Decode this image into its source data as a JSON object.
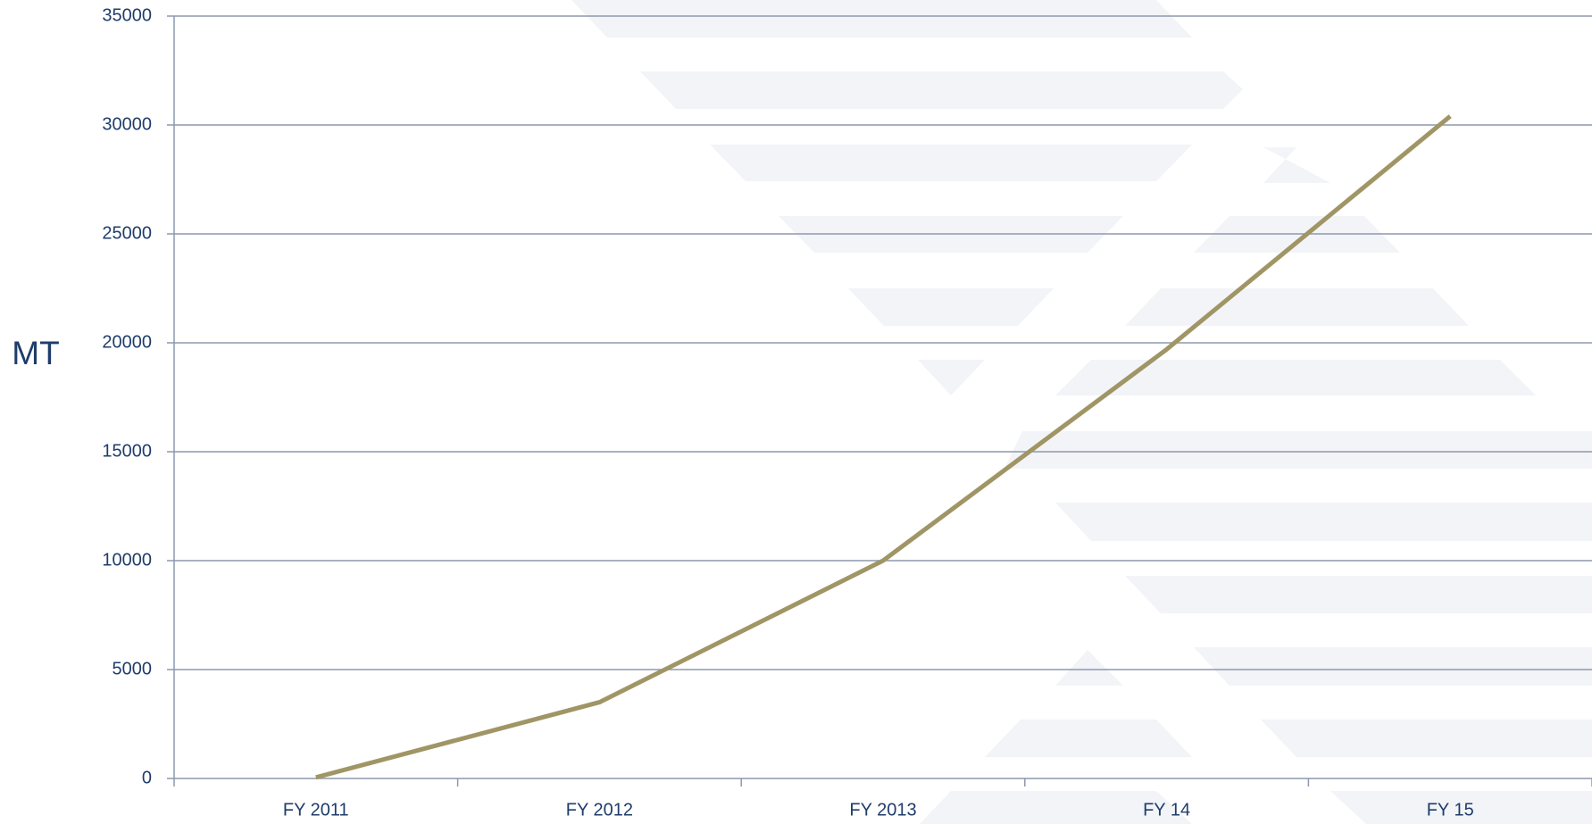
{
  "chart_data": {
    "type": "line",
    "ylabel": "MT",
    "categories": [
      "FY 2011",
      "FY 2012",
      "FY 2013",
      "FY 14",
      "FY 15"
    ],
    "series": [
      {
        "name": null,
        "color": "#a09565",
        "values": [
          50,
          3500,
          10000,
          19700,
          30400
        ]
      }
    ],
    "ylim": [
      0,
      35000
    ],
    "yticks": [
      0,
      5000,
      10000,
      15000,
      20000,
      25000,
      30000,
      35000
    ],
    "grid": true
  }
}
